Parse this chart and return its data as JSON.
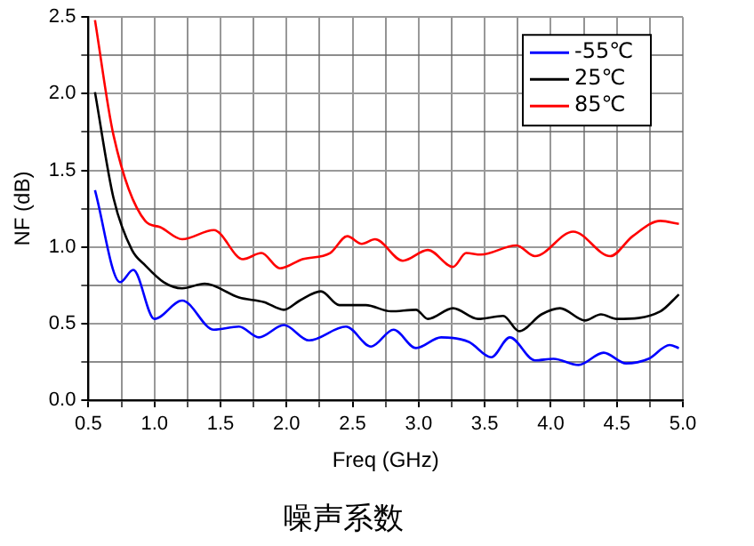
{
  "chart_data": {
    "type": "line",
    "title": "噪声系数",
    "xlabel": "Freq (GHz)",
    "ylabel": "NF (dB)",
    "xlim": [
      0.5,
      5.0
    ],
    "ylim": [
      0.0,
      2.5
    ],
    "xticks": [
      0.5,
      {
        "value": 0.75,
        "label": null
      },
      "1.0",
      {
        "value": 1.25,
        "label": null
      },
      1.5,
      {
        "value": 1.75,
        "label": null
      },
      {
        "value": 2.0,
        "label": "2.0"
      },
      {
        "value": 2.25,
        "label": null
      },
      2.5,
      {
        "value": 2.75,
        "label": null
      },
      {
        "value": 3.0,
        "label": "3.0"
      },
      {
        "value": 3.25,
        "label": null
      },
      3.5,
      {
        "value": 3.75,
        "label": null
      },
      {
        "value": 4.0,
        "label": "4.0"
      },
      {
        "value": 4.25,
        "label": null
      },
      4.5,
      {
        "value": 4.75,
        "label": null
      },
      {
        "value": 5.0,
        "label": "5.0"
      }
    ],
    "yticks": [
      {
        "value": 0.0,
        "label": "0.0"
      },
      {
        "value": 0.25,
        "label": null
      },
      0.5,
      {
        "value": 0.75,
        "label": null
      },
      {
        "value": 1.0,
        "label": "1.0"
      },
      {
        "value": 1.25,
        "label": null
      },
      1.5,
      {
        "value": 1.75,
        "label": null
      },
      {
        "value": 2.0,
        "label": "2.0"
      },
      {
        "value": 2.25,
        "label": null
      },
      2.5
    ],
    "grid": true,
    "legend": "top right",
    "marker": "none",
    "line_style": "solid",
    "series": [
      {
        "name": "-55℃",
        "color": "#0000ff",
        "x": [
          0.55,
          0.74,
          0.84,
          1.0,
          1.21,
          1.45,
          1.64,
          1.79,
          1.98,
          2.17,
          2.45,
          2.64,
          2.81,
          2.98,
          3.17,
          3.38,
          3.55,
          3.69,
          3.88,
          4.02,
          4.21,
          4.4,
          4.57,
          4.74,
          4.9,
          4.97
        ],
        "values": [
          1.37,
          0.77,
          0.85,
          0.53,
          0.65,
          0.46,
          0.48,
          0.41,
          0.49,
          0.39,
          0.48,
          0.35,
          0.46,
          0.34,
          0.41,
          0.38,
          0.28,
          0.41,
          0.26,
          0.27,
          0.23,
          0.31,
          0.24,
          0.27,
          0.36,
          0.34
        ]
      },
      {
        "name": "25℃",
        "color": "#000000",
        "x": [
          0.55,
          0.69,
          0.83,
          0.93,
          1.07,
          1.21,
          1.38,
          1.64,
          1.83,
          1.98,
          2.1,
          2.26,
          2.4,
          2.6,
          2.79,
          2.98,
          3.07,
          3.26,
          3.45,
          3.64,
          3.76,
          3.93,
          4.07,
          4.26,
          4.38,
          4.5,
          4.83,
          4.97
        ],
        "values": [
          2.01,
          1.32,
          0.98,
          0.88,
          0.77,
          0.73,
          0.76,
          0.67,
          0.64,
          0.59,
          0.65,
          0.71,
          0.62,
          0.62,
          0.58,
          0.59,
          0.53,
          0.6,
          0.53,
          0.55,
          0.45,
          0.56,
          0.6,
          0.52,
          0.56,
          0.53,
          0.58,
          0.69
        ]
      },
      {
        "name": "85℃",
        "color": "#ff0000",
        "x": [
          0.55,
          0.69,
          0.93,
          1.04,
          1.21,
          1.45,
          1.67,
          1.81,
          1.95,
          2.12,
          2.33,
          2.46,
          2.57,
          2.67,
          2.88,
          3.07,
          3.26,
          3.36,
          3.47,
          3.74,
          3.88,
          4.17,
          4.45,
          4.62,
          4.83,
          4.97
        ],
        "values": [
          2.48,
          1.73,
          1.17,
          1.13,
          1.05,
          1.11,
          0.92,
          0.96,
          0.86,
          0.92,
          0.96,
          1.07,
          1.02,
          1.05,
          0.91,
          0.98,
          0.87,
          0.96,
          0.95,
          1.01,
          0.94,
          1.1,
          0.94,
          1.07,
          1.17,
          1.15
        ]
      }
    ]
  }
}
